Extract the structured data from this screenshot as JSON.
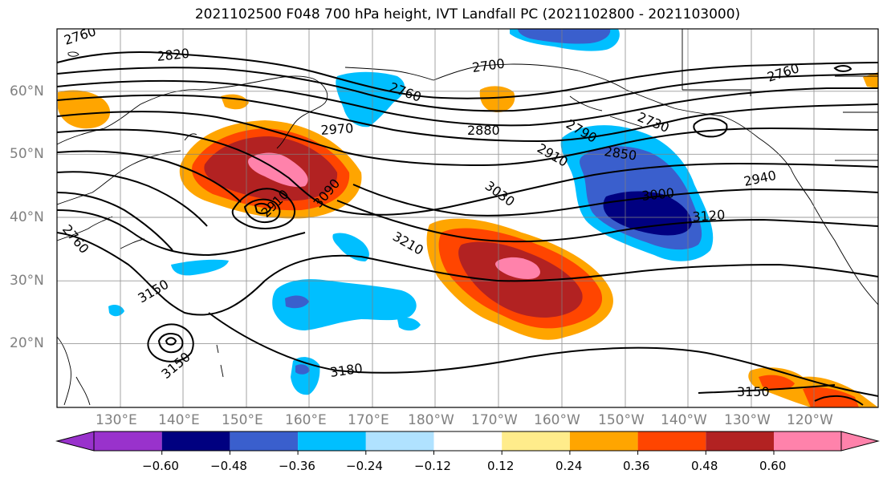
{
  "title": "2021102500 F048 700 hPa height, IVT Landfall PC (2021102800 - 2021103000)",
  "lat_labels": [
    "60°N",
    "50°N",
    "40°N",
    "30°N",
    "20°N"
  ],
  "lon_labels": [
    "130°E",
    "140°E",
    "150°E",
    "160°E",
    "170°E",
    "180°W",
    "170°W",
    "160°W",
    "150°W",
    "140°W",
    "130°W",
    "120°W"
  ],
  "contour_labels": [
    "2760",
    "2820",
    "2700",
    "2760",
    "2760",
    "2970",
    "2880",
    "2790",
    "2730",
    "2850",
    "2910",
    "2940",
    "3000",
    "3030",
    "3090",
    "2910",
    "3120",
    "3210",
    "3150",
    "3150",
    "3180",
    "3150",
    "2760"
  ],
  "colorbar": {
    "tick_labels": [
      "−0.60",
      "−0.48",
      "−0.36",
      "−0.24",
      "−0.12",
      "0.12",
      "0.24",
      "0.36",
      "0.48",
      "0.60"
    ],
    "colors": [
      "#9932cc",
      "#000080",
      "#3a5fcd",
      "#00bfff",
      "#b0e2ff",
      "#ffffff",
      "#ffec8b",
      "#ffa500",
      "#ff4500",
      "#b22222",
      "#ff82ab"
    ]
  }
}
